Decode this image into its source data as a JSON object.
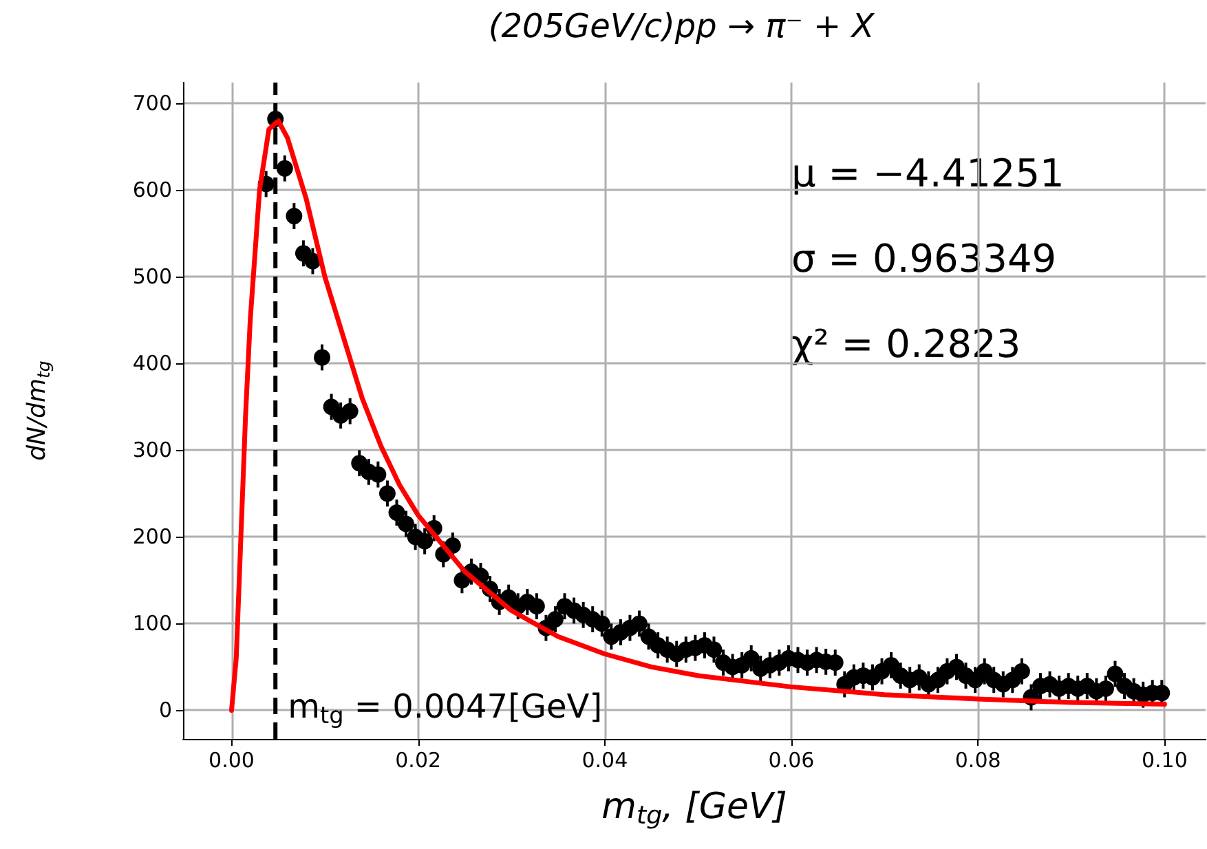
{
  "chart_data": {
    "type": "scatter",
    "title": "(205GeV/c)pp → π⁻ + X",
    "xlabel": "m$_{tg}$, [GeV]",
    "ylabel": "dN/dm$_{tg}$",
    "annotations": [
      "μ = −4.41251",
      "σ = 0.963349",
      "χ² = 0.2823"
    ],
    "xlim": [
      -0.0052,
      0.1044
    ],
    "ylim": [
      -33,
      724
    ],
    "xticks": [
      {
        "value": 0,
        "label": "0.00"
      },
      0.02,
      0.04,
      0.06,
      0.08,
      {
        "value": 0.1,
        "label": "0.10"
      }
    ],
    "yticks": [
      0,
      100,
      200,
      300,
      400,
      500,
      600,
      700
    ],
    "grid": true,
    "marker": "circle",
    "ref_lines": [
      {
        "axis": "x",
        "value": 0.0047,
        "label": "m$_{tg}$ = 0.0047[GeV]",
        "color": "#000000",
        "line_style": "dashed"
      }
    ],
    "series": [
      {
        "color": "#000000",
        "x": [
          0.0037,
          0.0047,
          0.0057,
          0.0067,
          0.0077,
          0.0087,
          0.0097,
          0.0107,
          0.0117,
          0.0127,
          0.0137,
          0.0147,
          0.0157,
          0.0167,
          0.0177,
          0.0187,
          0.0197,
          0.0207,
          0.0217,
          0.0227,
          0.0237,
          0.0247,
          0.0257,
          0.0267,
          0.0277,
          0.0287,
          0.0297,
          0.0307,
          0.0317,
          0.0327,
          0.0337,
          0.0347,
          0.0357,
          0.0367,
          0.0377,
          0.0387,
          0.0397,
          0.0407,
          0.0417,
          0.0427,
          0.0437,
          0.0447,
          0.0457,
          0.0467,
          0.0477,
          0.0487,
          0.0497,
          0.0507,
          0.0517,
          0.0527,
          0.0537,
          0.0547,
          0.0557,
          0.0567,
          0.0577,
          0.0587,
          0.0597,
          0.0607,
          0.0617,
          0.0627,
          0.0637,
          0.0647,
          0.0657,
          0.0667,
          0.0677,
          0.0687,
          0.0697,
          0.0707,
          0.0717,
          0.0727,
          0.0737,
          0.0747,
          0.0757,
          0.0767,
          0.0777,
          0.0787,
          0.0797,
          0.0807,
          0.0817,
          0.0827,
          0.0837,
          0.0847,
          0.0857,
          0.0867,
          0.0877,
          0.0887,
          0.0897,
          0.0907,
          0.0917,
          0.0927,
          0.0937,
          0.0947,
          0.0957,
          0.0967,
          0.0977,
          0.0987,
          0.0997
        ],
        "values": [
          607,
          682,
          625,
          570,
          527,
          518,
          407,
          350,
          340,
          345,
          285,
          275,
          272,
          250,
          228,
          215,
          200,
          195,
          210,
          180,
          190,
          150,
          160,
          155,
          140,
          125,
          130,
          120,
          125,
          120,
          95,
          105,
          120,
          115,
          110,
          105,
          100,
          85,
          90,
          95,
          100,
          85,
          75,
          70,
          65,
          70,
          72,
          75,
          70,
          55,
          50,
          52,
          60,
          48,
          52,
          55,
          60,
          58,
          55,
          58,
          56,
          55,
          30,
          38,
          40,
          38,
          45,
          52,
          40,
          35,
          38,
          30,
          35,
          45,
          50,
          40,
          35,
          45,
          35,
          30,
          35,
          45,
          15,
          28,
          30,
          25,
          28,
          25,
          28,
          22,
          25,
          42,
          28,
          22,
          18,
          20,
          20
        ],
        "errors": [
          15,
          15,
          15,
          15,
          15,
          15,
          15,
          15,
          15,
          15,
          15,
          15,
          15,
          15,
          15,
          15,
          15,
          15,
          15,
          15,
          15,
          15,
          15,
          15,
          15,
          15,
          15,
          15,
          15,
          15,
          15,
          15,
          15,
          15,
          15,
          15,
          15,
          15,
          15,
          15,
          15,
          15,
          15,
          15,
          15,
          15,
          15,
          15,
          15,
          15,
          15,
          15,
          15,
          15,
          15,
          15,
          15,
          15,
          15,
          15,
          15,
          15,
          15,
          15,
          15,
          15,
          15,
          15,
          15,
          15,
          15,
          15,
          15,
          15,
          15,
          15,
          15,
          15,
          15,
          15,
          15,
          15,
          15,
          15,
          15,
          15,
          15,
          15,
          15,
          15,
          15,
          15,
          15,
          15,
          15,
          15,
          15
        ]
      },
      {
        "type": "line",
        "color": "#ff0000",
        "marker": "none",
        "line_style": "solid",
        "x": [
          0,
          0.0005,
          0.001,
          0.0015,
          0.002,
          0.003,
          0.004,
          0.005,
          0.006,
          0.008,
          0.01,
          0.012,
          0.014,
          0.016,
          0.018,
          0.02,
          0.025,
          0.03,
          0.035,
          0.04,
          0.045,
          0.05,
          0.06,
          0.07,
          0.08,
          0.09,
          0.1
        ],
        "values": [
          0,
          60,
          200,
          340,
          450,
          600,
          670,
          680,
          660,
          590,
          500,
          430,
          360,
          305,
          260,
          225,
          160,
          115,
          85,
          65,
          50,
          40,
          27,
          18,
          13,
          9,
          7
        ]
      }
    ]
  }
}
